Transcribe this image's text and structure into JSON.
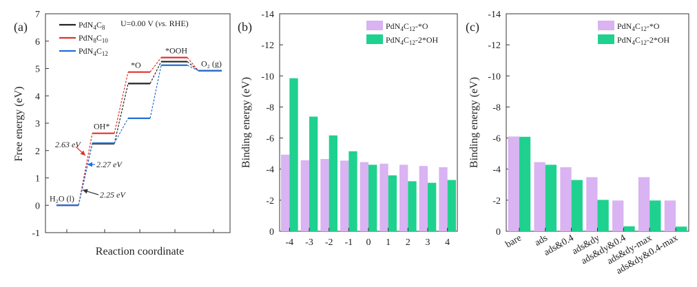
{
  "chart_data": [
    {
      "type": "line",
      "panel_label": "(a)",
      "xlabel": "Reaction coordinate",
      "ylabel": "Free energy (eV)",
      "ylim": [
        -1,
        7
      ],
      "yticks": [
        -1,
        0,
        1,
        2,
        3,
        4,
        5,
        6,
        7
      ],
      "annotation": "U=0.00 V (vs. RHE)",
      "steps": [
        "H2O (l)",
        "OH*",
        "*O",
        "*OOH",
        "O2 (g)"
      ],
      "step_labels": [
        {
          "label": "H₂O (l)",
          "step": 0
        },
        {
          "label": "OH*",
          "step": 1
        },
        {
          "label": "*O",
          "step": 2
        },
        {
          "label": "*OOH",
          "step": 3
        },
        {
          "label": "O₂ (g)",
          "step": 4
        }
      ],
      "series": [
        {
          "name": "PdN4C8",
          "legend_sub": "4",
          "legend_sub2": "8",
          "color": "#222222",
          "values": [
            0,
            2.25,
            4.45,
            5.25,
            4.92
          ]
        },
        {
          "name": "PdN8C10",
          "legend_sub": "8",
          "legend_sub2": "10",
          "color": "#e0302b",
          "values": [
            0,
            2.63,
            4.87,
            5.4,
            4.92
          ]
        },
        {
          "name": "PdN4C12",
          "legend_sub": "4",
          "legend_sub2": "12",
          "color": "#1f6fd6",
          "values": [
            0,
            2.27,
            3.18,
            5.12,
            4.92
          ]
        }
      ],
      "callouts": [
        {
          "text": "2.63 eV",
          "color": "#e0302b"
        },
        {
          "text": "2.27 eV",
          "color": "#1f6fd6"
        },
        {
          "text": "2.25 eV",
          "color": "#333333"
        }
      ]
    },
    {
      "type": "bar",
      "panel_label": "(b)",
      "ylabel": "Binding energy (eV)",
      "ylim": [
        0,
        -14
      ],
      "yticks": [
        0,
        -2,
        -4,
        -6,
        -8,
        -10,
        -12,
        -14
      ],
      "categories": [
        "-4",
        "-3",
        "-2",
        "-1",
        "0",
        "1",
        "2",
        "3",
        "4"
      ],
      "series": [
        {
          "name": "PdN4C12-*O",
          "legend_main": "PdN",
          "legend_sub": "4",
          "legend_mid": "C",
          "legend_sub2": "12",
          "legend_tail": "-*O",
          "color": "#d9b3f2",
          "values": [
            -4.93,
            -4.57,
            -4.65,
            -4.55,
            -4.45,
            -4.35,
            -4.28,
            -4.2,
            -4.12
          ]
        },
        {
          "name": "PdN4C12-2*OH",
          "legend_main": "PdN",
          "legend_sub": "4",
          "legend_mid": "C",
          "legend_sub2": "12",
          "legend_tail": "-2*OH",
          "color": "#1fd18f",
          "values": [
            -9.85,
            -7.38,
            -6.17,
            -5.15,
            -4.28,
            -3.6,
            -3.22,
            -3.12,
            -3.3
          ]
        }
      ]
    },
    {
      "type": "bar",
      "panel_label": "(c)",
      "ylabel": "Binding energy (eV)",
      "ylim": [
        0,
        -14
      ],
      "yticks": [
        0,
        -2,
        -4,
        -6,
        -8,
        -10,
        -12,
        -14
      ],
      "categories": [
        "bare",
        "ads",
        "ads&0.4",
        "ads&dy",
        "ads&dy&0.4",
        "ads&dy-max",
        "ads&dy&0.4-max"
      ],
      "series": [
        {
          "name": "PdN4C12-*O",
          "legend_main": "PdN",
          "legend_sub": "4",
          "legend_mid": "C",
          "legend_sub2": "12",
          "legend_tail": "-*O",
          "color": "#d9b3f2",
          "values": [
            -6.1,
            -4.45,
            -4.12,
            -3.48,
            -1.98,
            -3.48,
            -1.98
          ]
        },
        {
          "name": "PdN4C12-2*OH",
          "legend_main": "PdN",
          "legend_sub": "4",
          "legend_mid": "C",
          "legend_sub2": "12",
          "legend_tail": "-2*OH",
          "color": "#1fd18f",
          "values": [
            -6.08,
            -4.28,
            -3.3,
            -2.02,
            -0.32,
            -1.98,
            -0.3
          ]
        }
      ]
    }
  ]
}
